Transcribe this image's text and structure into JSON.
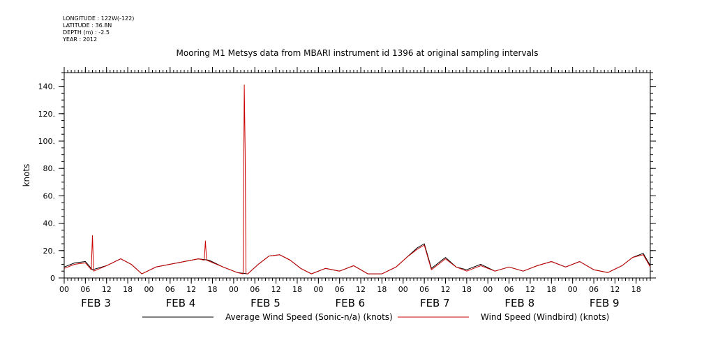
{
  "header": {
    "lines": [
      "LONGITUDE : 122W(-122)",
      "LATITUDE : 36.8N",
      "DEPTH (m) : -2.5",
      "YEAR : 2012"
    ]
  },
  "colors": {
    "series_sonic": "#000000",
    "series_windbird": "#cc0000"
  },
  "chart_data": {
    "type": "line",
    "title": "Mooring M1 Metsys data from MBARI instrument id 1396 at original sampling intervals",
    "ylabel": "knots",
    "xlabel": "",
    "ylim": [
      0,
      150
    ],
    "yticks": [
      0,
      20,
      40,
      60,
      80,
      100,
      120,
      140
    ],
    "ytick_labels": [
      "0",
      "20.",
      "40.",
      "60.",
      "80.",
      "100.",
      "120.",
      "140."
    ],
    "xlim": [
      "2012-02-03T00:00",
      "2012-02-09T22:00"
    ],
    "xtick_labels": [
      "00",
      "06",
      "12",
      "18",
      "00",
      "06",
      "12",
      "18",
      "00",
      "06",
      "12",
      "18",
      "00",
      "06",
      "12",
      "18",
      "00",
      "06",
      "12",
      "18",
      "00",
      "06",
      "12",
      "18",
      "00",
      "06",
      "12",
      "18"
    ],
    "day_labels": [
      "FEB 3",
      "FEB 4",
      "FEB 5",
      "FEB 6",
      "FEB 7",
      "FEB 8",
      "FEB 9"
    ],
    "legend_position": "bottom",
    "series": [
      {
        "name": "Average Wind Speed (Sonic-n/a) (knots)",
        "color": "#000000",
        "x": [
          "2012-02-03T00:00",
          "2012-02-03T03:00",
          "2012-02-03T06:00",
          "2012-02-03T08:00",
          "2012-02-03T12:00",
          "2012-02-03T16:00",
          "2012-02-03T19:00",
          "2012-02-03T22:00",
          "2012-02-04T02:00",
          "2012-02-04T06:00",
          "2012-02-04T10:00",
          "2012-02-04T14:00",
          "2012-02-04T17:00",
          "2012-02-04T21:00",
          "2012-02-05T01:00",
          "2012-02-05T04:00",
          "2012-02-05T07:00",
          "2012-02-05T10:00",
          "2012-02-05T13:00",
          "2012-02-05T16:00",
          "2012-02-05T19:00",
          "2012-02-05T22:00",
          "2012-02-06T02:00",
          "2012-02-06T06:00",
          "2012-02-06T10:00",
          "2012-02-06T14:00",
          "2012-02-06T18:00",
          "2012-02-06T22:00",
          "2012-02-07T01:00",
          "2012-02-07T04:00",
          "2012-02-07T06:00",
          "2012-02-07T08:00",
          "2012-02-07T12:00",
          "2012-02-07T15:00",
          "2012-02-07T18:00",
          "2012-02-07T22:00",
          "2012-02-08T02:00",
          "2012-02-08T06:00",
          "2012-02-08T10:00",
          "2012-02-08T14:00",
          "2012-02-08T18:00",
          "2012-02-08T22:00",
          "2012-02-09T02:00",
          "2012-02-09T06:00",
          "2012-02-09T10:00",
          "2012-02-09T14:00",
          "2012-02-09T17:00",
          "2012-02-09T20:00",
          "2012-02-09T22:00"
        ],
        "values": [
          8,
          11,
          12,
          6,
          9,
          14,
          10,
          3,
          8,
          10,
          12,
          14,
          13,
          8,
          4,
          3,
          10,
          16,
          17,
          13,
          7,
          3,
          7,
          5,
          9,
          3,
          3,
          8,
          15,
          22,
          25,
          7,
          15,
          8,
          6,
          10,
          5,
          8,
          5,
          9,
          12,
          8,
          12,
          6,
          4,
          9,
          15,
          18,
          9
        ]
      },
      {
        "name": "Wind Speed (Windbird) (knots)",
        "color": "#cc0000",
        "x": [
          "2012-02-03T00:00",
          "2012-02-03T03:00",
          "2012-02-03T06:00",
          "2012-02-03T07:40",
          "2012-02-03T08:00",
          "2012-02-03T08:20",
          "2012-02-03T12:00",
          "2012-02-03T16:00",
          "2012-02-03T19:00",
          "2012-02-03T22:00",
          "2012-02-04T02:00",
          "2012-02-04T06:00",
          "2012-02-04T10:00",
          "2012-02-04T14:00",
          "2012-02-04T15:40",
          "2012-02-04T16:00",
          "2012-02-04T16:20",
          "2012-02-04T21:00",
          "2012-02-05T01:00",
          "2012-02-05T02:40",
          "2012-02-05T03:00",
          "2012-02-05T03:15",
          "2012-02-05T03:30",
          "2012-02-05T04:00",
          "2012-02-05T07:00",
          "2012-02-05T10:00",
          "2012-02-05T13:00",
          "2012-02-05T16:00",
          "2012-02-05T19:00",
          "2012-02-05T22:00",
          "2012-02-06T02:00",
          "2012-02-06T06:00",
          "2012-02-06T10:00",
          "2012-02-06T14:00",
          "2012-02-06T18:00",
          "2012-02-06T22:00",
          "2012-02-07T01:00",
          "2012-02-07T04:00",
          "2012-02-07T06:00",
          "2012-02-07T08:00",
          "2012-02-07T12:00",
          "2012-02-07T15:00",
          "2012-02-07T18:00",
          "2012-02-07T22:00",
          "2012-02-08T02:00",
          "2012-02-08T06:00",
          "2012-02-08T10:00",
          "2012-02-08T14:00",
          "2012-02-08T18:00",
          "2012-02-08T22:00",
          "2012-02-09T02:00",
          "2012-02-09T06:00",
          "2012-02-09T10:00",
          "2012-02-09T14:00",
          "2012-02-09T17:00",
          "2012-02-09T20:00",
          "2012-02-09T22:00"
        ],
        "values": [
          7,
          10,
          11,
          6,
          31,
          5,
          9,
          14,
          10,
          3,
          8,
          10,
          12,
          14,
          13,
          27,
          13,
          8,
          4,
          3,
          141,
          95,
          3,
          3,
          10,
          16,
          17,
          13,
          7,
          3,
          7,
          5,
          9,
          3,
          3,
          8,
          15,
          21,
          24,
          6,
          14,
          8,
          5,
          9,
          5,
          8,
          5,
          9,
          12,
          8,
          12,
          6,
          4,
          9,
          15,
          17,
          8
        ]
      }
    ]
  }
}
